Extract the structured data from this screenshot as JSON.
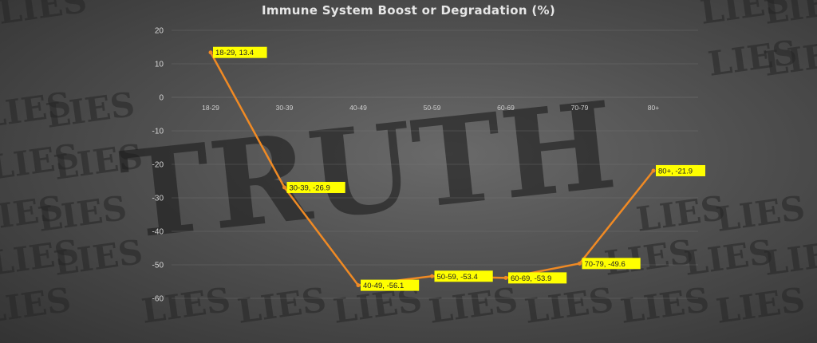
{
  "chart_data": {
    "type": "line",
    "title": "Immune System Boost or Degradation (%)",
    "categories": [
      "18-29",
      "30-39",
      "40-49",
      "50-59",
      "60-69",
      "70-79",
      "80+"
    ],
    "values": [
      13.4,
      -26.9,
      -56.1,
      -53.4,
      -53.9,
      -49.6,
      -21.9
    ],
    "data_labels": [
      "18-29, 13.4",
      "30-39, -26.9",
      "40-49, -56.1",
      "50-59, -53.4",
      "60-69, -53.9",
      "70-79, -49.6",
      "80+, -21.9"
    ],
    "ylim": [
      -60,
      20
    ],
    "yticks": [
      "20",
      "10",
      "0",
      "-10",
      "-20",
      "-30",
      "-40",
      "-50",
      "-60"
    ],
    "grid": true,
    "line_color": "#f08a24",
    "label_bg_color": "#ffff00",
    "background_watermark": {
      "main_word": "TRUTH",
      "repeated_word": "LIES"
    }
  }
}
